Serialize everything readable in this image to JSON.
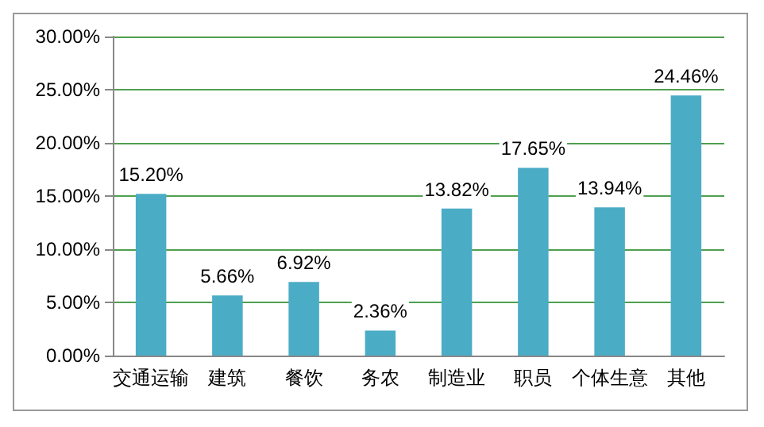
{
  "chart_data": {
    "type": "bar",
    "categories": [
      "交通运输",
      "建筑",
      "餐饮",
      "务农",
      "制造业",
      "职员",
      "个体生意",
      "其他"
    ],
    "values": [
      15.2,
      5.66,
      6.92,
      2.36,
      13.82,
      17.65,
      13.94,
      24.46
    ],
    "value_labels": [
      "15.20%",
      "5.66%",
      "6.92%",
      "2.36%",
      "13.82%",
      "17.65%",
      "13.94%",
      "24.46%"
    ],
    "color": "#4bacc6",
    "ylim": [
      0,
      30
    ],
    "yticks": [
      {
        "value": 0,
        "label": "0.00%"
      },
      {
        "value": 5,
        "label": "5.00%"
      },
      {
        "value": 10,
        "label": "10.00%"
      },
      {
        "value": 15,
        "label": "15.00%"
      },
      {
        "value": 20,
        "label": "20.00%"
      },
      {
        "value": 25,
        "label": "25.00%"
      },
      {
        "value": 30,
        "label": "30.00%"
      }
    ],
    "grid": "y"
  }
}
